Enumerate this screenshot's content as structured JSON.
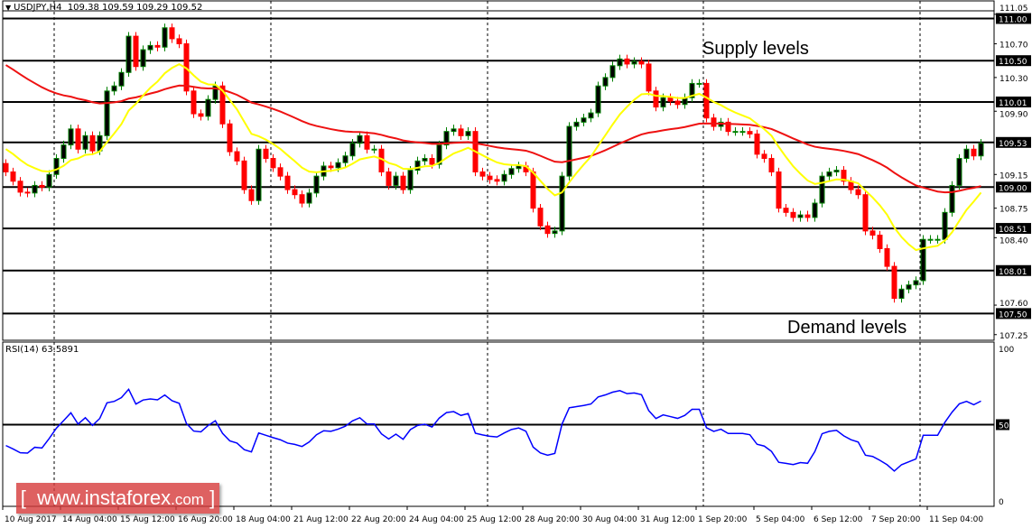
{
  "header": {
    "symbol": "USDJPY,H4",
    "ohlc": "109.38 109.59 109.29 109.52"
  },
  "annotations": {
    "supply": "Supply levels",
    "demand": "Demand levels"
  },
  "watermark": {
    "left": "[",
    "site": "www.instaforex",
    "domain": ".com",
    "right": "]"
  },
  "colors": {
    "bull_body": "#000000",
    "bull_outline": "#008000",
    "bear": "#ff0000",
    "ma_fast": "#ffff00",
    "ma_slow": "#ee1111",
    "rsi": "#0000ff",
    "label_bg": "#000000",
    "label_fg": "#ffffff"
  },
  "chart_data": [
    {
      "type": "candlestick",
      "title": "USDJPY,H4",
      "ylim": [
        107.2,
        111.05
      ],
      "grid": false,
      "horizontal_levels": [
        "111.00",
        "110.50",
        "110.01",
        "109.53",
        "109.00",
        "108.51",
        "108.01",
        "107.50"
      ],
      "y_ticks": [
        "111.05",
        "110.70",
        "110.30",
        "109.90",
        "109.15",
        "108.75",
        "108.40",
        "107.60",
        "107.25"
      ],
      "x_ticks": [
        "10 Aug 2017",
        "14 Aug 04:00",
        "15 Aug 12:00",
        "16 Aug 20:00",
        "18 Aug 04:00",
        "21 Aug 12:00",
        "22 Aug 20:00",
        "24 Aug 04:00",
        "25 Aug 12:00",
        "28 Aug 20:00",
        "30 Aug 04:00",
        "31 Aug 12:00",
        "1 Sep 20:00",
        "5 Sep 04:00",
        "6 Sep 12:00",
        "7 Sep 20:00",
        "11 Sep 04:00"
      ],
      "first_open": 109.28,
      "close": [
        109.18,
        109.07,
        108.94,
        108.93,
        109.02,
        109.0,
        109.15,
        109.34,
        109.5,
        109.69,
        109.45,
        109.61,
        109.43,
        109.61,
        110.14,
        110.2,
        110.36,
        110.79,
        110.43,
        110.63,
        110.68,
        110.66,
        110.89,
        110.76,
        110.7,
        110.14,
        109.87,
        109.84,
        110.04,
        110.2,
        109.75,
        109.42,
        109.31,
        108.97,
        108.84,
        109.45,
        109.34,
        109.23,
        109.13,
        108.97,
        108.91,
        108.81,
        108.93,
        109.13,
        109.25,
        109.23,
        109.29,
        109.37,
        109.52,
        109.61,
        109.45,
        109.45,
        109.18,
        109.02,
        109.13,
        108.97,
        109.2,
        109.31,
        109.34,
        109.27,
        109.5,
        109.66,
        109.69,
        109.61,
        109.66,
        109.18,
        109.13,
        109.09,
        109.07,
        109.15,
        109.22,
        109.25,
        109.18,
        108.75,
        108.54,
        108.45,
        108.48,
        109.13,
        109.72,
        109.77,
        109.82,
        109.88,
        110.2,
        110.3,
        110.44,
        110.52,
        110.46,
        110.49,
        110.46,
        110.14,
        109.95,
        110.06,
        110.02,
        109.98,
        110.06,
        110.23,
        110.23,
        109.82,
        109.72,
        109.77,
        109.66,
        109.66,
        109.66,
        109.63,
        109.39,
        109.34,
        109.18,
        108.75,
        108.7,
        108.64,
        108.67,
        108.64,
        108.81,
        109.13,
        109.18,
        109.2,
        109.07,
        108.97,
        108.91,
        108.48,
        108.43,
        108.27,
        108.06,
        107.68,
        107.79,
        107.84,
        107.89,
        108.38,
        108.38,
        108.38,
        108.7,
        109.02,
        109.34,
        109.45,
        109.37,
        109.52
      ]
    },
    {
      "type": "line",
      "title": "RSI(14) 63.5891",
      "ylim": [
        0,
        100
      ],
      "y_ticks": [
        "100",
        "50",
        "0"
      ],
      "level": "50"
    }
  ],
  "rsi": {
    "label": "RSI(14) 63.5891"
  }
}
